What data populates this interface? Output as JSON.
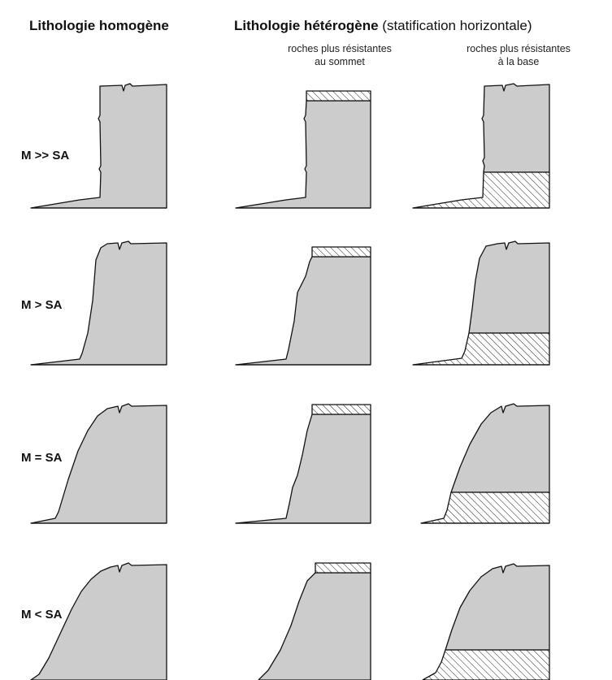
{
  "headers": {
    "homogeneous": "Lithologie homogène",
    "heterogeneous_bold": "Lithologie hétérogène",
    "heterogeneous_note": "(statification horizontale)"
  },
  "subheaders": {
    "top_line1": "roches plus résistantes",
    "top_line2": "au sommet",
    "base_line1": "roches plus résistantes",
    "base_line2": "à la base"
  },
  "rows": [
    {
      "label": "M >> SA"
    },
    {
      "label": "M > SA"
    },
    {
      "label": "M = SA"
    },
    {
      "label": "M < SA"
    }
  ],
  "colors": {
    "fill": "#cccccc",
    "stroke": "#111111",
    "hatch": "#222222"
  }
}
